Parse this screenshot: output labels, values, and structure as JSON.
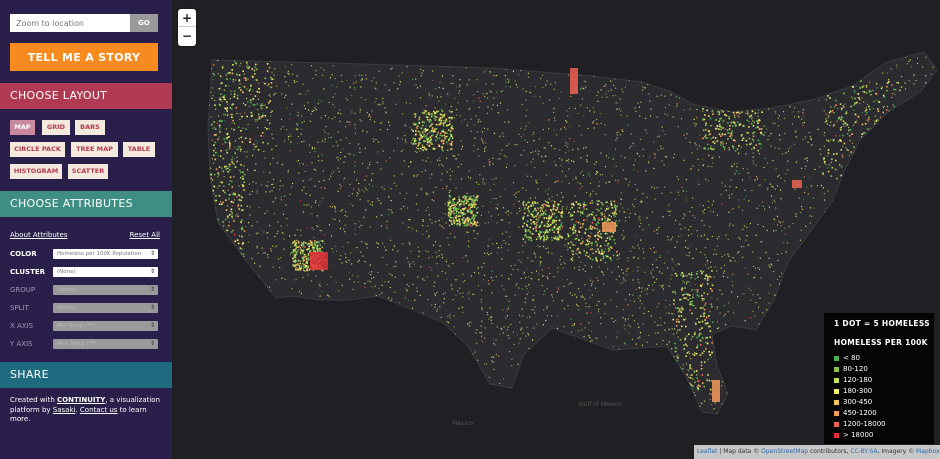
{
  "sidebar": {
    "zoom_placeholder": "Zoom to location",
    "go_label": "GO",
    "story_label": "TELL ME A STORY",
    "layout_header": "CHOOSE LAYOUT",
    "layout_buttons": [
      {
        "label": "MAP",
        "active": true
      },
      {
        "label": "GRID",
        "active": false
      },
      {
        "label": "BARS",
        "active": false
      },
      {
        "label": "CIRCLE PACK",
        "active": false
      },
      {
        "label": "TREE MAP",
        "active": false
      },
      {
        "label": "TABLE",
        "active": false
      },
      {
        "label": "HISTOGRAM",
        "active": false
      },
      {
        "label": "SCATTER",
        "active": false
      }
    ],
    "attributes_header": "CHOOSE ATTRIBUTES",
    "about_attributes": "About Attributes",
    "reset_all": "Reset All",
    "attributes": [
      {
        "label": "COLOR",
        "value": "Homeless per 100K Population",
        "enabled": true
      },
      {
        "label": "CLUSTER",
        "value": "(None)",
        "enabled": true
      },
      {
        "label": "GROUP",
        "value": "(None)",
        "enabled": false
      },
      {
        "label": "SPLIT",
        "value": "(None)",
        "enabled": false
      },
      {
        "label": "X AXIS",
        "value": "Min Temp (°F)",
        "enabled": false
      },
      {
        "label": "Y AXIS",
        "value": "Max Temp (°F)",
        "enabled": false
      }
    ],
    "share_header": "SHARE",
    "share_text": {
      "created_with": "Created with ",
      "continuity": "CONTINUITY",
      "middle": ", a visualization platform by ",
      "sasaki": "Sasaki",
      "period": ". ",
      "contact": "Contact us",
      "end": " to learn more."
    }
  },
  "map": {
    "zoom_in": "+",
    "zoom_out": "−",
    "labels": {
      "gulf": "Gulf of Mexico",
      "mexico": "México"
    },
    "legend": {
      "title": "1 DOT = 5 HOMELESS",
      "subtitle": "HOMELESS PER 100K",
      "items": [
        {
          "label": "< 80",
          "color": "#4caf50"
        },
        {
          "label": "80-120",
          "color": "#8bc34a"
        },
        {
          "label": "120-180",
          "color": "#c6e35a"
        },
        {
          "label": "180-300",
          "color": "#f2f06b"
        },
        {
          "label": "300-450",
          "color": "#f7c860"
        },
        {
          "label": "450-1200",
          "color": "#f49a5a"
        },
        {
          "label": "1200-18000",
          "color": "#ef6352"
        },
        {
          "label": "> 18000",
          "color": "#e8303a"
        }
      ]
    },
    "attribution": {
      "leaflet": "Leaflet",
      "map_data": " | Map data © ",
      "osm": "OpenStreetMap",
      "contributors": " contributors, ",
      "ccbysa": "CC-BY-SA",
      "imagery": ", Imagery © ",
      "mapbox": "Mapbox"
    }
  }
}
